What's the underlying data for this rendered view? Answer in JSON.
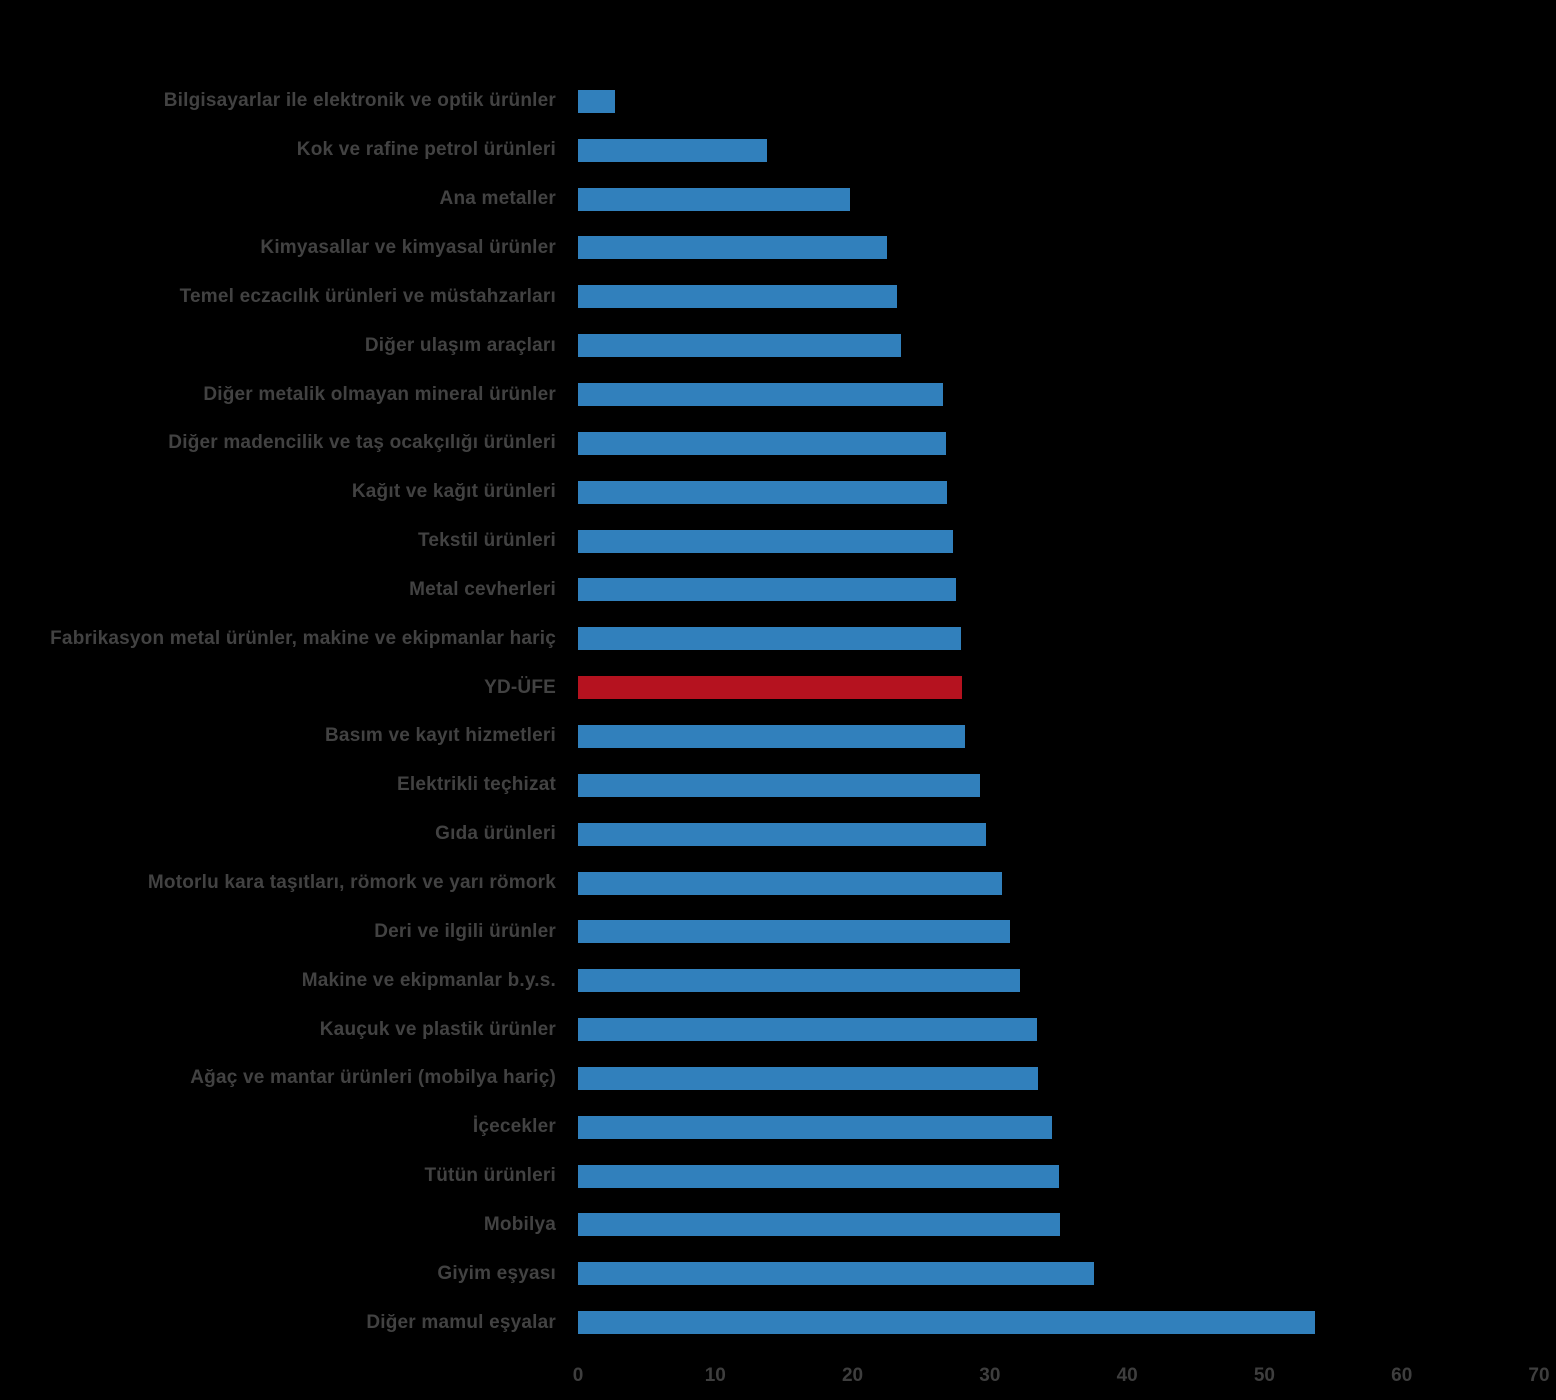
{
  "chart_data": {
    "type": "bar",
    "orientation": "horizontal",
    "title": "",
    "xlabel": "",
    "ylabel": "",
    "grid": false,
    "legend_position": "none",
    "xlim": [
      0,
      70
    ],
    "x_ticks": [
      "0",
      "10",
      "20",
      "30",
      "40",
      "50",
      "60",
      "70"
    ],
    "x_tick_values": [
      0,
      10,
      20,
      30,
      40,
      50,
      60,
      70
    ],
    "categories": [
      "Bilgisayarlar ile elektronik ve optik ürünler",
      "Kok ve rafine petrol ürünleri",
      "Ana metaller",
      "Kimyasallar ve kimyasal ürünler",
      "Temel eczacılık ürünleri ve müstahzarları",
      "Diğer ulaşım araçları",
      "Diğer metalik olmayan mineral ürünler",
      "Diğer madencilik ve taş ocakçılığı ürünleri",
      "Kağıt ve kağıt ürünleri",
      "Tekstil ürünleri",
      "Metal cevherleri",
      "Fabrikasyon metal ürünler, makine ve ekipmanlar hariç",
      "YD-ÜFE",
      "Basım ve kayıt hizmetleri",
      "Elektrikli teçhizat",
      "Gıda ürünleri",
      "Motorlu kara taşıtları, römork ve yarı römork",
      "Deri ve ilgili ürünler",
      "Makine ve ekipmanlar b.y.s.",
      "Kauçuk ve plastik ürünler",
      "Ağaç ve mantar ürünleri (mobilya hariç)",
      "İçecekler",
      "Tütün ürünleri",
      "Mobilya",
      "Giyim eşyası",
      "Diğer mamul eşyalar"
    ],
    "values": [
      2.7,
      13.8,
      19.8,
      22.5,
      23.2,
      23.5,
      26.6,
      26.8,
      26.9,
      27.3,
      27.5,
      27.9,
      28.0,
      28.2,
      29.3,
      29.7,
      30.9,
      31.5,
      32.2,
      33.4,
      33.5,
      34.5,
      35.0,
      35.1,
      37.6,
      53.7
    ],
    "highlighted_category": "YD-ÜFE",
    "colors": {
      "bar": "#3180BC",
      "bar_highlight": "#B5121F",
      "category_label": "#424242",
      "tick_label": "#3E3E3E",
      "background": "#000000"
    }
  }
}
